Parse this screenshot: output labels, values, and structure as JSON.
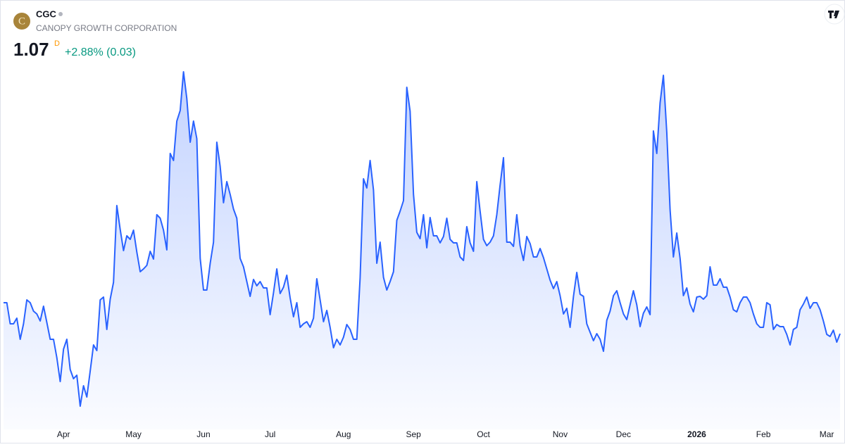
{
  "header": {
    "logo": "C",
    "symbol": "CGC",
    "name": "CANOPY GROWTH CORPORATION",
    "price": "1.07",
    "interval": "D",
    "change": "+2.88% (0.03)"
  },
  "chart_data": {
    "type": "area",
    "color": "#2962ff",
    "categories": [
      null,
      null,
      null,
      null,
      null,
      null,
      null,
      null,
      null,
      null,
      null,
      null,
      null,
      null,
      null,
      null,
      null,
      null,
      "Apr",
      null,
      null,
      null,
      null,
      null,
      null,
      null,
      null,
      null,
      null,
      null,
      null,
      null,
      null,
      null,
      null,
      null,
      null,
      null,
      null,
      "May",
      null,
      null,
      null,
      null,
      null,
      null,
      null,
      null,
      null,
      null,
      null,
      null,
      null,
      null,
      null,
      null,
      null,
      null,
      null,
      null,
      "Jun",
      null,
      null,
      null,
      null,
      null,
      null,
      null,
      null,
      null,
      null,
      null,
      null,
      null,
      null,
      null,
      null,
      null,
      null,
      null,
      "Jul",
      null,
      null,
      null,
      null,
      null,
      null,
      null,
      null,
      null,
      null,
      null,
      null,
      null,
      null,
      null,
      null,
      null,
      null,
      null,
      null,
      null,
      "Aug",
      null,
      null,
      null,
      null,
      null,
      null,
      null,
      null,
      null,
      null,
      null,
      null,
      null,
      null,
      null,
      null,
      null,
      null,
      null,
      null,
      "Sep",
      null,
      null,
      null,
      null,
      null,
      null,
      null,
      null,
      null,
      null,
      null,
      null,
      null,
      null,
      null,
      null,
      null,
      null,
      null,
      null,
      "Oct",
      null,
      null,
      null,
      null,
      null,
      null,
      null,
      null,
      null,
      null,
      null,
      null,
      null,
      null,
      null,
      null,
      null,
      null,
      null,
      null,
      null,
      null,
      "Nov",
      null,
      null,
      null,
      null,
      null,
      null,
      null,
      null,
      null,
      null,
      null,
      null,
      null,
      null,
      null,
      null,
      null,
      null,
      "Dec",
      null,
      null,
      null,
      null,
      null,
      null,
      null,
      null,
      null,
      null,
      null,
      null,
      null,
      null,
      null,
      null,
      null,
      null,
      null,
      null,
      null,
      "2026",
      null,
      null,
      null,
      null,
      null,
      null,
      null,
      null,
      null,
      null,
      null,
      null,
      null,
      null,
      null,
      null,
      null,
      null,
      null,
      "Feb",
      null,
      null,
      null,
      null,
      null,
      null,
      null,
      null,
      null,
      null,
      null,
      null,
      null,
      null,
      null,
      null,
      null,
      null,
      "Mar",
      null,
      null,
      null,
      null
    ],
    "values": [
      1.158,
      1.158,
      1.098,
      1.098,
      1.114,
      1.054,
      1.098,
      1.166,
      1.158,
      1.134,
      1.126,
      1.106,
      1.148,
      1.102,
      1.054,
      1.054,
      1.002,
      0.934,
      1.026,
      1.054,
      0.968,
      0.942,
      0.952,
      0.864,
      0.922,
      0.89,
      0.964,
      1.038,
      1.022,
      1.166,
      1.174,
      1.082,
      1.168,
      1.216,
      1.434,
      1.366,
      1.306,
      1.348,
      1.338,
      1.364,
      1.302,
      1.246,
      1.254,
      1.264,
      1.304,
      1.282,
      1.408,
      1.398,
      1.364,
      1.308,
      1.582,
      1.562,
      1.674,
      1.704,
      1.814,
      1.738,
      1.614,
      1.674,
      1.624,
      1.284,
      1.194,
      1.194,
      1.27,
      1.33,
      1.614,
      1.546,
      1.442,
      1.502,
      1.466,
      1.424,
      1.398,
      1.284,
      1.26,
      1.218,
      1.176,
      1.224,
      1.206,
      1.218,
      1.2,
      1.2,
      1.124,
      1.186,
      1.254,
      1.184,
      1.202,
      1.236,
      1.172,
      1.118,
      1.158,
      1.088,
      1.098,
      1.104,
      1.088,
      1.114,
      1.226,
      1.166,
      1.104,
      1.136,
      1.088,
      1.03,
      1.054,
      1.038,
      1.06,
      1.096,
      1.082,
      1.054,
      1.054,
      1.228,
      1.51,
      1.484,
      1.562,
      1.478,
      1.27,
      1.33,
      1.23,
      1.194,
      1.218,
      1.246,
      1.392,
      1.418,
      1.448,
      1.77,
      1.702,
      1.466,
      1.358,
      1.34,
      1.408,
      1.314,
      1.4,
      1.348,
      1.348,
      1.328,
      1.346,
      1.398,
      1.338,
      1.328,
      1.328,
      1.288,
      1.278,
      1.374,
      1.328,
      1.304,
      1.502,
      1.418,
      1.338,
      1.32,
      1.33,
      1.348,
      1.408,
      1.492,
      1.57,
      1.33,
      1.33,
      1.318,
      1.408,
      1.32,
      1.278,
      1.346,
      1.326,
      1.288,
      1.288,
      1.312,
      1.286,
      1.254,
      1.222,
      1.198,
      1.218,
      1.178,
      1.126,
      1.142,
      1.088,
      1.176,
      1.244,
      1.182,
      1.176,
      1.098,
      1.074,
      1.05,
      1.07,
      1.054,
      1.02,
      1.108,
      1.134,
      1.178,
      1.192,
      1.158,
      1.126,
      1.11,
      1.152,
      1.192,
      1.152,
      1.09,
      1.128,
      1.146,
      1.124,
      1.646,
      1.582,
      1.726,
      1.804,
      1.642,
      1.422,
      1.288,
      1.356,
      1.284,
      1.178,
      1.2,
      1.154,
      1.132,
      1.174,
      1.176,
      1.168,
      1.178,
      1.26,
      1.208,
      1.208,
      1.226,
      1.202,
      1.202,
      1.174,
      1.138,
      1.132,
      1.158,
      1.174,
      1.174,
      1.158,
      1.126,
      1.098,
      1.088,
      1.088,
      1.158,
      1.152,
      1.082,
      1.096,
      1.09,
      1.09,
      1.068,
      1.038,
      1.082,
      1.088,
      1.138,
      1.154,
      1.174,
      1.142,
      1.158,
      1.158,
      1.138,
      1.106,
      1.068,
      1.062,
      1.08,
      1.046,
      1.07
    ]
  }
}
